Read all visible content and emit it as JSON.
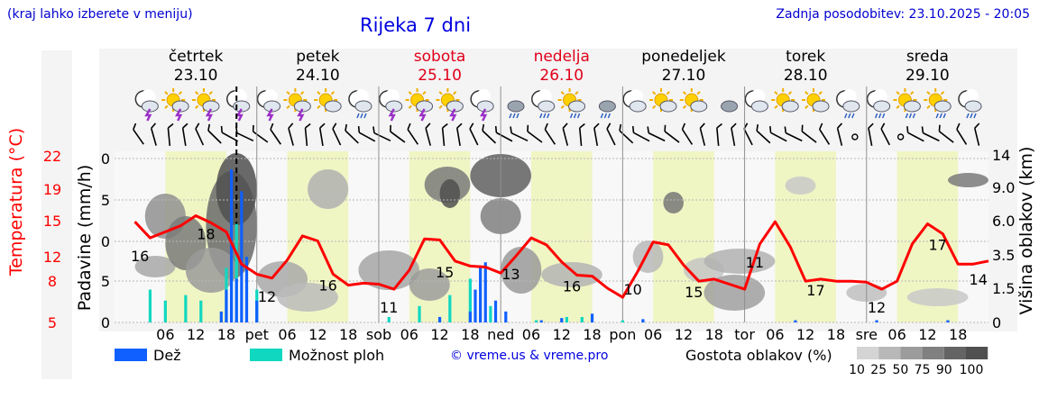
{
  "header": {
    "note": "(kraj lahko izberete v meniju)",
    "title": "Rijeka 7 dni",
    "updated": "Zadnja posodobitev: 23.10.2025 - 20:05",
    "copyright": "© vreme.us & vreme.pro"
  },
  "days": [
    {
      "name": "četrtek",
      "date": "23.10",
      "weekend": false
    },
    {
      "name": "petek",
      "date": "24.10",
      "weekend": false
    },
    {
      "name": "sobota",
      "date": "25.10",
      "weekend": true
    },
    {
      "name": "nedelja",
      "date": "26.10",
      "weekend": true
    },
    {
      "name": "ponedeljek",
      "date": "27.10",
      "weekend": false
    },
    {
      "name": "torek",
      "date": "28.10",
      "weekend": false
    },
    {
      "name": "sreda",
      "date": "29.10",
      "weekend": false
    }
  ],
  "x_axis": {
    "hour_ticks": [
      "06",
      "12",
      "18"
    ],
    "day_abbr": [
      "pet",
      "sob",
      "ned",
      "pon",
      "tor",
      "sre"
    ]
  },
  "axes": {
    "temperature": {
      "label": "Temperatura (°C)",
      "ticks": [
        5,
        8,
        12,
        15,
        19,
        22
      ],
      "color": "#ff0000"
    },
    "precipitation": {
      "label": "Padavine (mm/h)",
      "ticks": [
        "0",
        "5",
        "0",
        "5",
        "0"
      ]
    },
    "cloud_height": {
      "label": "Višina oblakov (km)",
      "ticks": [
        "0",
        "1.5",
        "3.5",
        "6.0",
        "9.0",
        "14"
      ]
    }
  },
  "legend": {
    "rain": {
      "label": "Dež",
      "color": "#1060ff"
    },
    "showers": {
      "label": "Možnost ploh",
      "color": "#10d8c0"
    },
    "density_label": "Gostota oblakov (%)",
    "density_levels": [
      {
        "label": "10",
        "color": "#d4d4d4"
      },
      {
        "label": "25",
        "color": "#b8b8b8"
      },
      {
        "label": "50",
        "color": "#9c9c9c"
      },
      {
        "label": "75",
        "color": "#808080"
      },
      {
        "label": "90",
        "color": "#646464"
      },
      {
        "label": "100",
        "color": "#505050"
      }
    ]
  },
  "icons": [
    "night-storm",
    "sun-storm",
    "sun-storm",
    "night-storm",
    "night-storm",
    "sun-storm",
    "sun-cloud",
    "night-rain",
    "night-storm",
    "sun-storm",
    "sun-storm",
    "night-storm",
    "rain-cloud",
    "night-rain",
    "sun-rain",
    "rain-cloud",
    "night-cloud",
    "sun-cloud",
    "sun-cloud",
    "cloud",
    "night-cloud",
    "sun-cloud",
    "sun-cloud",
    "night-rain",
    "night-rain",
    "sun-rain",
    "sun-rain",
    "night-rain"
  ],
  "chart_data": {
    "type": "line",
    "series": [
      {
        "color": "#ff0000",
        "unit": "°C",
        "x_hours": [
          0,
          3,
          6,
          9,
          12,
          15,
          18,
          21,
          24,
          27,
          30,
          33,
          36,
          39,
          42,
          45,
          48,
          51,
          54,
          57,
          60,
          63,
          66,
          69,
          72,
          75,
          78,
          81,
          84,
          87,
          90,
          93,
          96,
          99,
          102,
          105,
          108,
          111,
          114,
          117,
          120,
          123,
          126,
          129,
          132,
          135,
          138,
          141,
          144,
          147,
          150,
          153,
          156,
          159,
          162,
          165,
          168
        ],
        "values": [
          15.0,
          13.4,
          14.0,
          14.6,
          15.6,
          14.9,
          14.0,
          10.8,
          9.8,
          9.4,
          11.2,
          13.6,
          13.1,
          9.8,
          8.7,
          8.9,
          8.8,
          8.3,
          10.2,
          13.3,
          13.2,
          11.1,
          10.6,
          10.5,
          9.9,
          11.6,
          13.4,
          12.7,
          11.0,
          9.7,
          9.6,
          8.4,
          7.5,
          10.1,
          13.0,
          12.7,
          10.7,
          9.1,
          9.3,
          8.8,
          8.3,
          12.8,
          15.0,
          12.5,
          9.1,
          9.3,
          9.1,
          9.1,
          9.0,
          8.3,
          9.1,
          12.8,
          14.8,
          13.8,
          10.8,
          10.8,
          11.1
        ]
      }
    ],
    "point_labels": [
      {
        "hour": 1,
        "value": "16"
      },
      {
        "hour": 14,
        "value": "18"
      },
      {
        "hour": 26,
        "value": "12"
      },
      {
        "hour": 38,
        "value": "16"
      },
      {
        "hour": 50,
        "value": "11"
      },
      {
        "hour": 61,
        "value": "15"
      },
      {
        "hour": 74,
        "value": "13"
      },
      {
        "hour": 86,
        "value": "16"
      },
      {
        "hour": 98,
        "value": "10"
      },
      {
        "hour": 110,
        "value": "15"
      },
      {
        "hour": 122,
        "value": "11"
      },
      {
        "hour": 134,
        "value": "17"
      },
      {
        "hour": 146,
        "value": "12"
      },
      {
        "hour": 158,
        "value": "17"
      },
      {
        "hour": 166,
        "value": "14"
      }
    ],
    "bars": {
      "rain_mm_h": [
        [
          17,
          1.0
        ],
        [
          18,
          3.0
        ],
        [
          19,
          14.0
        ],
        [
          20,
          4.0
        ],
        [
          21,
          12.0
        ],
        [
          22,
          6.0
        ],
        [
          24,
          2.0
        ],
        [
          60,
          0.5
        ],
        [
          66,
          1.0
        ],
        [
          67,
          3.0
        ],
        [
          68,
          5.0
        ],
        [
          69,
          5.5
        ],
        [
          71,
          2.0
        ],
        [
          73,
          1.0
        ],
        [
          80,
          0.2
        ],
        [
          84,
          0.4
        ],
        [
          90,
          0.8
        ],
        [
          100,
          0.3
        ],
        [
          130,
          0.2
        ],
        [
          146,
          0.2
        ],
        [
          160,
          0.2
        ]
      ],
      "showers_mm_h": [
        [
          3,
          3.0
        ],
        [
          6,
          2.0
        ],
        [
          10,
          2.5
        ],
        [
          13,
          2.0
        ],
        [
          18,
          5.0
        ],
        [
          19,
          10.0
        ],
        [
          20,
          9.0
        ],
        [
          22,
          6.0
        ],
        [
          24,
          3.0
        ],
        [
          50,
          0.5
        ],
        [
          56,
          1.5
        ],
        [
          62,
          2.5
        ],
        [
          66,
          4.0
        ],
        [
          70,
          1.5
        ],
        [
          79,
          0.2
        ],
        [
          85,
          0.5
        ],
        [
          88,
          0.5
        ],
        [
          96,
          0.2
        ]
      ]
    }
  }
}
